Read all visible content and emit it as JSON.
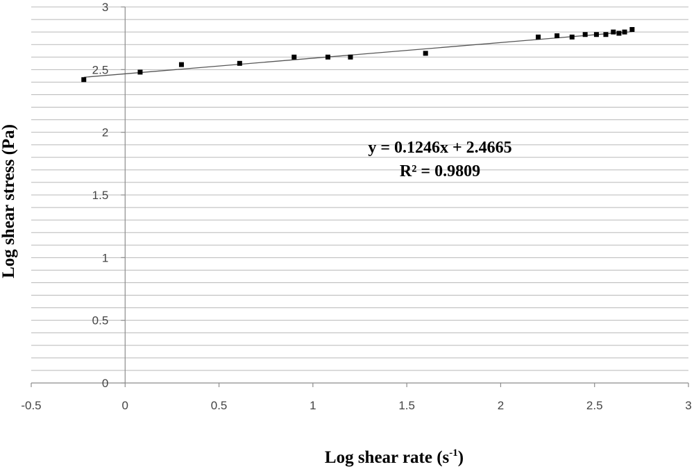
{
  "chart_data": {
    "type": "scatter",
    "title": "",
    "xlabel": "Log  shear rate (s",
    "xlabel_sup": "-1",
    "xlabel_close": ")",
    "ylabel": "Log shear stress (Pa)",
    "xlim": [
      -0.5,
      3
    ],
    "ylim": [
      0,
      3
    ],
    "x_ticks": [
      -0.5,
      0,
      0.5,
      1,
      1.5,
      2,
      2.5,
      3
    ],
    "x_tick_labels": [
      "-0.5",
      "0",
      "0.5",
      "1",
      "1.5",
      "2",
      "2.5",
      "3"
    ],
    "y_ticks": [
      0,
      0.5,
      1,
      1.5,
      2,
      2.5,
      3
    ],
    "y_tick_labels": [
      "0",
      "0.5",
      "1",
      "1.5",
      "2",
      "2.5",
      "3"
    ],
    "y_minor_step": 0.1,
    "grid": true,
    "legend": "none",
    "series": [
      {
        "points": [
          [
            -0.22,
            2.42
          ],
          [
            0.08,
            2.48
          ],
          [
            0.3,
            2.54
          ],
          [
            0.61,
            2.55
          ],
          [
            0.9,
            2.6
          ],
          [
            1.08,
            2.6
          ],
          [
            1.2,
            2.6
          ],
          [
            1.6,
            2.63
          ],
          [
            2.2,
            2.76
          ],
          [
            2.3,
            2.77
          ],
          [
            2.38,
            2.76
          ],
          [
            2.45,
            2.78
          ],
          [
            2.51,
            2.78
          ],
          [
            2.56,
            2.78
          ],
          [
            2.6,
            2.8
          ],
          [
            2.63,
            2.79
          ],
          [
            2.66,
            2.8
          ],
          [
            2.7,
            2.82
          ]
        ],
        "marker": "square",
        "color": "#000000"
      }
    ],
    "trendline": {
      "slope": 0.1246,
      "intercept": 2.4665,
      "x_range": [
        -0.22,
        2.7
      ],
      "color": "#555555"
    },
    "annotations": {
      "equation": "y = 0.1246x + 2.4665",
      "r_squared": "R² = 0.9809"
    }
  },
  "colors": {
    "grid": "#b8b8b8",
    "axis": "#8c8c8c",
    "marker": "#000000"
  }
}
